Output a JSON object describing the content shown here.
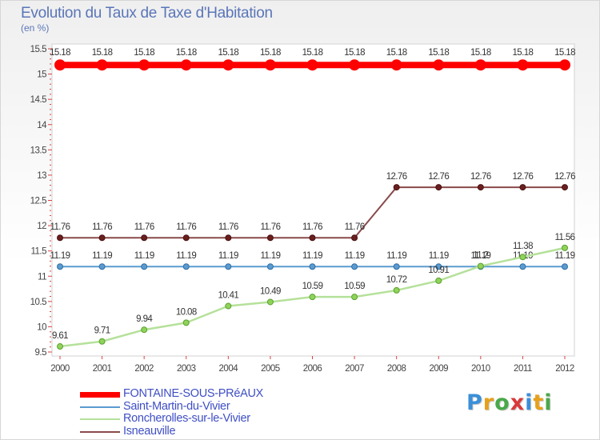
{
  "chart_data": {
    "type": "line",
    "title": "Evolution du Taux de Taxe d'Habitation",
    "subtitle": "(en %)",
    "xlabel": "",
    "ylabel": "",
    "ylim": [
      9.5,
      15.5
    ],
    "yticks": [
      {
        "value": 9.5,
        "label": "9.5"
      },
      {
        "value": 10,
        "label": "10"
      },
      {
        "value": 10.5,
        "label": "10.5"
      },
      {
        "value": 11,
        "label": "11"
      },
      {
        "value": 11.5,
        "label": "11.5"
      },
      {
        "value": 12,
        "label": "12"
      },
      {
        "value": 12.5,
        "label": "12.5"
      },
      {
        "value": 13,
        "label": "13"
      },
      {
        "value": 13.5,
        "label": "13.5"
      },
      {
        "value": 14,
        "label": "14"
      },
      {
        "value": 14.5,
        "label": "14.5"
      },
      {
        "value": 15,
        "label": "15"
      },
      {
        "value": 15.5,
        "label": "15.5"
      }
    ],
    "x": [
      "2000",
      "2001",
      "2002",
      "2003",
      "2004",
      "2005",
      "2006",
      "2007",
      "2008",
      "2009",
      "2010",
      "2011",
      "2012"
    ],
    "series": [
      {
        "name": "FONTAINE-SOUS-PRéAUX",
        "color": "#ff0000",
        "values": [
          15.18,
          15.18,
          15.18,
          15.18,
          15.18,
          15.18,
          15.18,
          15.18,
          15.18,
          15.18,
          15.18,
          15.18,
          15.18
        ],
        "labels": [
          "15.18",
          "15.18",
          "15.18",
          "15.18",
          "15.18",
          "15.18",
          "15.18",
          "15.18",
          "15.18",
          "15.18",
          "15.18",
          "15.18",
          "15.18"
        ]
      },
      {
        "name": "Saint-Martin-du-Vivier",
        "color": "#5b9bd0",
        "values": [
          11.19,
          11.19,
          11.19,
          11.19,
          11.19,
          11.19,
          11.19,
          11.19,
          11.19,
          11.19,
          11.19,
          11.19,
          11.19
        ],
        "labels": [
          "11.19",
          "11.19",
          "11.19",
          "11.19",
          "11.19",
          "11.19",
          "11.19",
          "11.19",
          "11.19",
          "11.19",
          "11.19",
          "11.19",
          "11.19"
        ]
      },
      {
        "name": "Roncherolles-sur-le-Vivier",
        "color": "#a8dc86",
        "values": [
          9.61,
          9.71,
          9.94,
          10.08,
          10.41,
          10.49,
          10.59,
          10.59,
          10.72,
          10.91,
          11.2,
          11.38,
          11.56
        ],
        "labels": [
          "9.61",
          "9.71",
          "9.94",
          "10.08",
          "10.41",
          "10.49",
          "10.59",
          "10.59",
          "10.72",
          "10.91",
          "11.2",
          "11.38",
          "11.56"
        ]
      },
      {
        "name": "Isneauville",
        "color": "#8a4a4a",
        "values": [
          11.76,
          11.76,
          11.76,
          11.76,
          11.76,
          11.76,
          11.76,
          11.76,
          12.76,
          12.76,
          12.76,
          12.76,
          12.76
        ],
        "labels": [
          "11.76",
          "11.76",
          "11.76",
          "11.76",
          "11.76",
          "11.76",
          "11.76",
          "11.76",
          "12.76",
          "12.76",
          "12.76",
          "12.76",
          "12.76"
        ]
      }
    ],
    "legend_position": "bottom-left",
    "grid": false
  },
  "logo": {
    "letters": [
      "P",
      "r",
      "o",
      "x",
      "i",
      "t",
      "i"
    ],
    "colors": [
      "#3b8fd8",
      "#e7a01a",
      "#4aa84a",
      "#d83a3a",
      "#3b8fd8",
      "#e7a01a",
      "#4aa84a"
    ]
  }
}
